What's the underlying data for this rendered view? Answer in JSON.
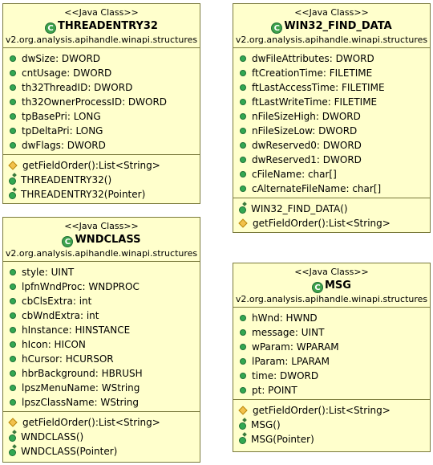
{
  "stereotype": "<<Java Class>>",
  "package": "v2.org.analysis.apihandle.winapi.structures",
  "classes": {
    "threadentry32": {
      "name": "THREADENTRY32",
      "fields": [
        "dwSize: DWORD",
        "cntUsage: DWORD",
        "th32ThreadID: DWORD",
        "th32OwnerProcessID: DWORD",
        "tpBasePri: LONG",
        "tpDeltaPri: LONG",
        "dwFlags: DWORD"
      ],
      "methods": [
        "getFieldOrder():List<String>",
        "THREADENTRY32()",
        "THREADENTRY32(Pointer)"
      ]
    },
    "win32_find_data": {
      "name": "WIN32_FIND_DATA",
      "fields": [
        "dwFileAttributes: DWORD",
        "ftCreationTime: FILETIME",
        "ftLastAccessTime: FILETIME",
        "ftLastWriteTime: FILETIME",
        "nFileSizeHigh: DWORD",
        "nFileSizeLow: DWORD",
        "dwReserved0: DWORD",
        "dwReserved1: DWORD",
        "cFileName: char[]",
        "cAlternateFileName: char[]"
      ],
      "methods": [
        "WIN32_FIND_DATA()",
        "getFieldOrder():List<String>"
      ]
    },
    "wndclass": {
      "name": "WNDCLASS",
      "fields": [
        "style: UINT",
        "lpfnWndProc: WNDPROC",
        "cbClsExtra: int",
        "cbWndExtra: int",
        "hInstance: HINSTANCE",
        "hIcon: HICON",
        "hCursor: HCURSOR",
        "hbrBackground: HBRUSH",
        "lpszMenuName: WString",
        "lpszClassName: WString"
      ],
      "methods": [
        "getFieldOrder():List<String>",
        "WNDCLASS()",
        "WNDCLASS(Pointer)"
      ]
    },
    "msg": {
      "name": "MSG",
      "fields": [
        "hWnd: HWND",
        "message: UINT",
        "wParam: WPARAM",
        "lParam: LPARAM",
        "time: DWORD",
        "pt: POINT"
      ],
      "methods": [
        "getFieldOrder():List<String>",
        "MSG()",
        "MSG(Pointer)"
      ]
    }
  },
  "icons": {
    "class": "class-icon",
    "field": "public-field-icon",
    "method": "protected-method-icon",
    "constructor": "constructor-icon"
  },
  "colors": {
    "fill": "#ffffcc",
    "border": "#7a7a3c",
    "class_icon": "#3fa34d",
    "protected_icon": "#f2c14c"
  }
}
